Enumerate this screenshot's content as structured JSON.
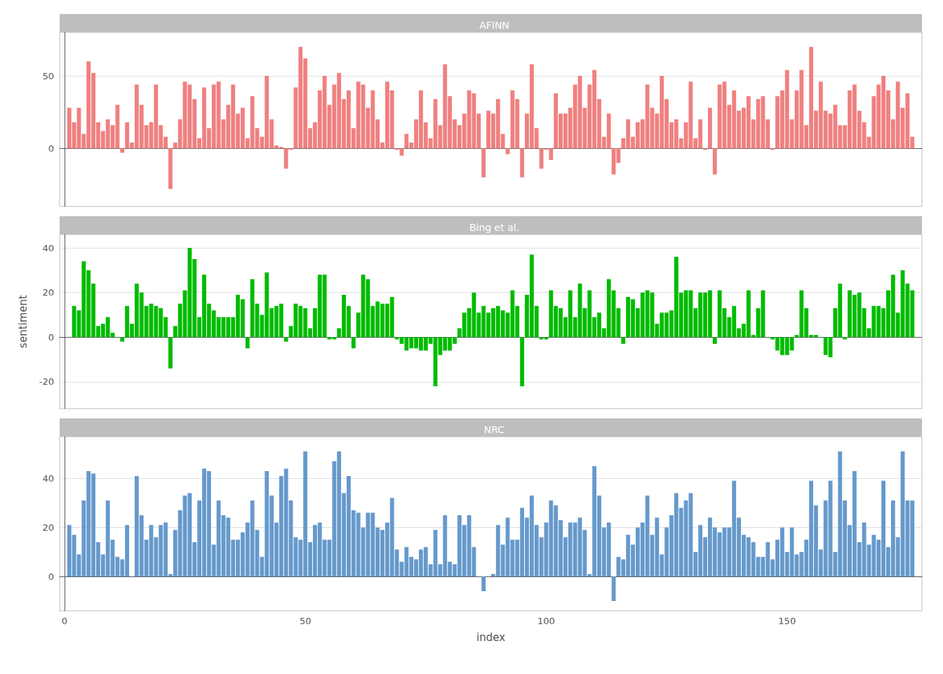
{
  "chart_data": [
    {
      "type": "bar",
      "title": "AFINN",
      "color": "#F08080",
      "grid": true,
      "tick_labels": "y",
      "xlim": [
        -1,
        178
      ],
      "ylim": [
        -40,
        80
      ],
      "yticks": [
        0,
        50
      ],
      "x": [
        1,
        2,
        3,
        4,
        5,
        6,
        7,
        8,
        9,
        10,
        11,
        12,
        13,
        14,
        15,
        16,
        17,
        18,
        19,
        20,
        21,
        22,
        23,
        24,
        25,
        26,
        27,
        28,
        29,
        30,
        31,
        32,
        33,
        34,
        35,
        36,
        37,
        38,
        39,
        40,
        41,
        42,
        43,
        44,
        45,
        46,
        47,
        48,
        49,
        50,
        51,
        52,
        53,
        54,
        55,
        56,
        57,
        58,
        59,
        60,
        61,
        62,
        63,
        64,
        65,
        66,
        67,
        68,
        69,
        70,
        71,
        72,
        73,
        74,
        75,
        76,
        77,
        78,
        79,
        80,
        81,
        82,
        83,
        84,
        85,
        86,
        87,
        88,
        89,
        90,
        91,
        92,
        93,
        94,
        95,
        96,
        97,
        98,
        99,
        100,
        101,
        102,
        103,
        104,
        105,
        106,
        107,
        108,
        109,
        110,
        111,
        112,
        113,
        114,
        115,
        116,
        117,
        118,
        119,
        120,
        121,
        122,
        123,
        124,
        125,
        126,
        127,
        128,
        129,
        130,
        131,
        132,
        133,
        134,
        135,
        136,
        137,
        138,
        139,
        140,
        141,
        142,
        143,
        144,
        145,
        146,
        147,
        148,
        149,
        150,
        151,
        152,
        153,
        154,
        155,
        156,
        157,
        158,
        159,
        160,
        161,
        162,
        163,
        164,
        165,
        166,
        167,
        168,
        169,
        170,
        171,
        172,
        173,
        174,
        175,
        176
      ],
      "values": [
        28,
        18,
        28,
        10,
        60,
        52,
        18,
        12,
        20,
        16,
        30,
        -3,
        18,
        4,
        44,
        30,
        16,
        18,
        44,
        16,
        8,
        -28,
        4,
        20,
        46,
        44,
        34,
        7,
        42,
        14,
        44,
        46,
        20,
        30,
        44,
        24,
        28,
        7,
        36,
        14,
        8,
        50,
        20,
        2,
        1,
        -14,
        -1,
        42,
        70,
        62,
        14,
        18,
        40,
        50,
        30,
        44,
        52,
        34,
        40,
        14,
        46,
        44,
        28,
        40,
        20,
        4,
        46,
        40,
        -1,
        -5,
        10,
        4,
        20,
        40,
        18,
        7,
        34,
        16,
        58,
        36,
        20,
        16,
        24,
        40,
        38,
        24,
        -20,
        26,
        24,
        34,
        10,
        -4,
        40,
        34,
        -20,
        24,
        58,
        14,
        -14,
        -1,
        -8,
        38,
        24,
        24,
        28,
        44,
        50,
        28,
        44,
        54,
        34,
        8,
        24,
        -18,
        -10,
        7,
        20,
        8,
        18,
        20,
        44,
        28,
        24,
        50,
        34,
        18,
        20,
        7,
        18,
        46,
        7,
        20,
        -1,
        28,
        -18,
        44,
        46,
        30,
        40,
        26,
        28,
        36,
        20,
        34,
        36,
        20,
        -1,
        36,
        40,
        54,
        20,
        40,
        54,
        16,
        70,
        26,
        46,
        26,
        24,
        30,
        16,
        16,
        40,
        44,
        26,
        18,
        8,
        36,
        44,
        50,
        40,
        20,
        46,
        28,
        38,
        8
      ]
    },
    {
      "type": "bar",
      "title": "Bing et al.",
      "color": "#00BB00",
      "grid": true,
      "tick_labels": "y",
      "ylabel": "sentiment",
      "xlim": [
        -1,
        178
      ],
      "ylim": [
        -32,
        46
      ],
      "yticks": [
        -20,
        0,
        20,
        40
      ],
      "x": [
        1,
        2,
        3,
        4,
        5,
        6,
        7,
        8,
        9,
        10,
        11,
        12,
        13,
        14,
        15,
        16,
        17,
        18,
        19,
        20,
        21,
        22,
        23,
        24,
        25,
        26,
        27,
        28,
        29,
        30,
        31,
        32,
        33,
        34,
        35,
        36,
        37,
        38,
        39,
        40,
        41,
        42,
        43,
        44,
        45,
        46,
        47,
        48,
        49,
        50,
        51,
        52,
        53,
        54,
        55,
        56,
        57,
        58,
        59,
        60,
        61,
        62,
        63,
        64,
        65,
        66,
        67,
        68,
        69,
        70,
        71,
        72,
        73,
        74,
        75,
        76,
        77,
        78,
        79,
        80,
        81,
        82,
        83,
        84,
        85,
        86,
        87,
        88,
        89,
        90,
        91,
        92,
        93,
        94,
        95,
        96,
        97,
        98,
        99,
        100,
        101,
        102,
        103,
        104,
        105,
        106,
        107,
        108,
        109,
        110,
        111,
        112,
        113,
        114,
        115,
        116,
        117,
        118,
        119,
        120,
        121,
        122,
        123,
        124,
        125,
        126,
        127,
        128,
        129,
        130,
        131,
        132,
        133,
        134,
        135,
        136,
        137,
        138,
        139,
        140,
        141,
        142,
        143,
        144,
        145,
        146,
        147,
        148,
        149,
        150,
        151,
        152,
        153,
        154,
        155,
        156,
        157,
        158,
        159,
        160,
        161,
        162,
        163,
        164,
        165,
        166,
        167,
        168,
        169,
        170,
        171,
        172,
        173,
        174,
        175,
        176
      ],
      "values": [
        0,
        14,
        12,
        34,
        30,
        24,
        5,
        6,
        9,
        2,
        0,
        -2,
        14,
        6,
        24,
        20,
        14,
        15,
        14,
        13,
        9,
        -14,
        5,
        15,
        21,
        40,
        35,
        9,
        28,
        15,
        12,
        9,
        9,
        9,
        9,
        19,
        17,
        -5,
        26,
        15,
        10,
        29,
        13,
        14,
        15,
        -2,
        5,
        15,
        14,
        13,
        4,
        13,
        28,
        28,
        -1,
        -1,
        4,
        19,
        14,
        -5,
        11,
        28,
        26,
        14,
        16,
        15,
        15,
        18,
        -1,
        -3,
        -6,
        -5,
        -5,
        -6,
        -6,
        -3,
        -22,
        -8,
        -6,
        -6,
        -3,
        4,
        11,
        13,
        20,
        11,
        14,
        11,
        13,
        14,
        12,
        11,
        21,
        14,
        -22,
        19,
        37,
        14,
        -1,
        -1,
        21,
        14,
        13,
        9,
        21,
        9,
        24,
        13,
        21,
        9,
        11,
        4,
        26,
        21,
        13,
        -3,
        18,
        17,
        13,
        20,
        21,
        20,
        6,
        11,
        11,
        12,
        36,
        20,
        21,
        21,
        13,
        20,
        20,
        21,
        -3,
        21,
        13,
        9,
        14,
        4,
        6,
        21,
        1,
        13,
        21,
        0,
        -1,
        -6,
        -8,
        -8,
        -6,
        1,
        21,
        13,
        1,
        1,
        0,
        -8,
        -9,
        13,
        24,
        -1,
        21,
        19,
        20,
        13,
        4,
        14,
        14,
        13,
        21,
        28,
        11,
        30,
        24,
        21
      ]
    },
    {
      "type": "bar",
      "title": "NRC",
      "color": "#6699CC",
      "grid": true,
      "xlabel": "index",
      "xlim": [
        -1,
        178
      ],
      "xticks": [
        0,
        50,
        100,
        150
      ],
      "ylim": [
        -14,
        57
      ],
      "yticks": [
        0,
        20,
        40
      ],
      "x": [
        1,
        2,
        3,
        4,
        5,
        6,
        7,
        8,
        9,
        10,
        11,
        12,
        13,
        14,
        15,
        16,
        17,
        18,
        19,
        20,
        21,
        22,
        23,
        24,
        25,
        26,
        27,
        28,
        29,
        30,
        31,
        32,
        33,
        34,
        35,
        36,
        37,
        38,
        39,
        40,
        41,
        42,
        43,
        44,
        45,
        46,
        47,
        48,
        49,
        50,
        51,
        52,
        53,
        54,
        55,
        56,
        57,
        58,
        59,
        60,
        61,
        62,
        63,
        64,
        65,
        66,
        67,
        68,
        69,
        70,
        71,
        72,
        73,
        74,
        75,
        76,
        77,
        78,
        79,
        80,
        81,
        82,
        83,
        84,
        85,
        86,
        87,
        88,
        89,
        90,
        91,
        92,
        93,
        94,
        95,
        96,
        97,
        98,
        99,
        100,
        101,
        102,
        103,
        104,
        105,
        106,
        107,
        108,
        109,
        110,
        111,
        112,
        113,
        114,
        115,
        116,
        117,
        118,
        119,
        120,
        121,
        122,
        123,
        124,
        125,
        126,
        127,
        128,
        129,
        130,
        131,
        132,
        133,
        134,
        135,
        136,
        137,
        138,
        139,
        140,
        141,
        142,
        143,
        144,
        145,
        146,
        147,
        148,
        149,
        150,
        151,
        152,
        153,
        154,
        155,
        156,
        157,
        158,
        159,
        160,
        161,
        162,
        163,
        164,
        165,
        166,
        167,
        168,
        169,
        170,
        171,
        172,
        173,
        174,
        175,
        176
      ],
      "values": [
        21,
        17,
        9,
        31,
        43,
        42,
        14,
        9,
        31,
        15,
        8,
        7,
        21,
        0,
        41,
        25,
        15,
        21,
        16,
        21,
        22,
        1,
        19,
        27,
        33,
        34,
        14,
        31,
        44,
        43,
        13,
        31,
        25,
        24,
        15,
        15,
        18,
        22,
        31,
        19,
        8,
        43,
        33,
        22,
        41,
        44,
        31,
        16,
        15,
        51,
        14,
        21,
        22,
        15,
        15,
        47,
        51,
        34,
        41,
        27,
        26,
        20,
        26,
        26,
        20,
        19,
        22,
        32,
        11,
        6,
        12,
        8,
        7,
        11,
        12,
        5,
        19,
        5,
        25,
        6,
        5,
        25,
        21,
        25,
        12,
        0,
        -6,
        0,
        1,
        21,
        13,
        24,
        15,
        15,
        28,
        24,
        33,
        21,
        16,
        22,
        31,
        29,
        23,
        16,
        22,
        22,
        24,
        19,
        1,
        45,
        33,
        20,
        22,
        -10,
        8,
        7,
        17,
        13,
        20,
        22,
        33,
        17,
        24,
        9,
        20,
        25,
        34,
        28,
        31,
        34,
        10,
        21,
        16,
        24,
        20,
        18,
        20,
        20,
        39,
        24,
        17,
        16,
        14,
        8,
        8,
        14,
        7,
        15,
        20,
        10,
        20,
        9,
        10,
        15,
        39,
        29,
        11,
        31,
        39,
        10,
        51,
        31,
        21,
        43,
        14,
        22,
        13,
        17,
        15,
        39,
        12,
        31,
        16,
        51,
        31,
        31
      ]
    }
  ]
}
